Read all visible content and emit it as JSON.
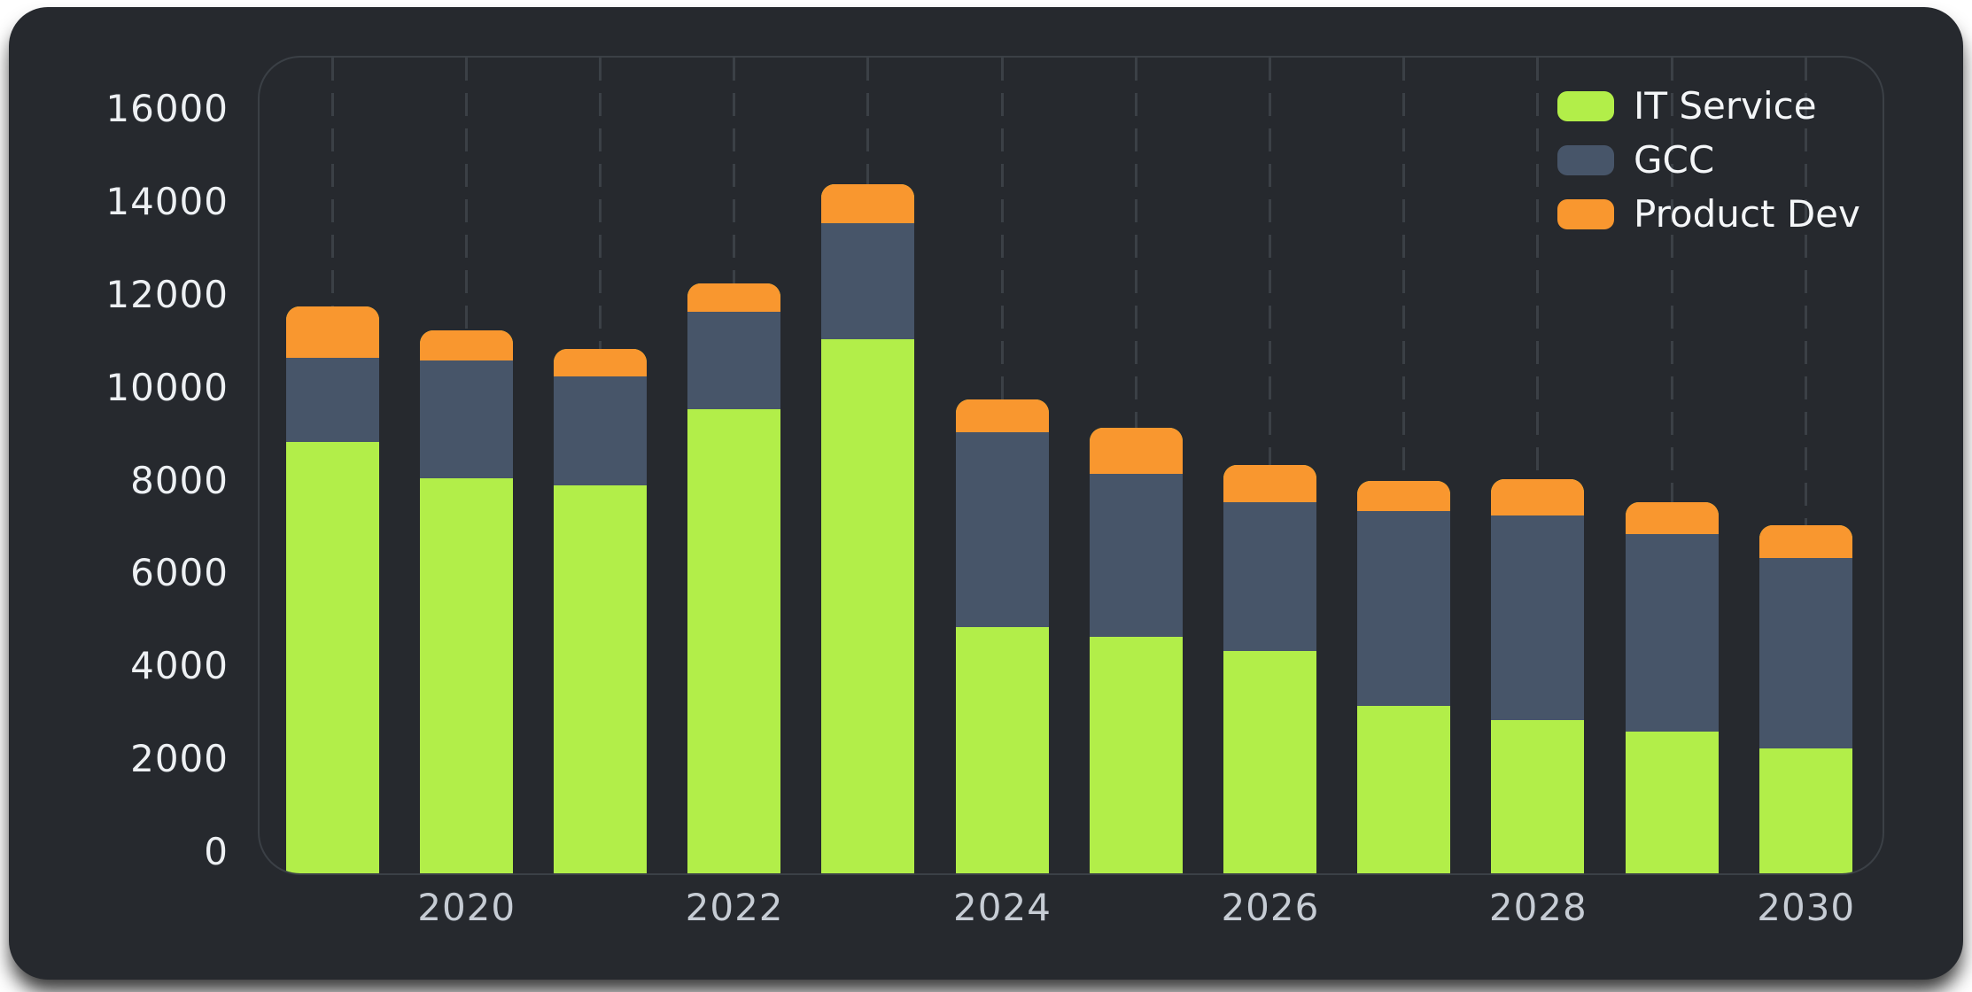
{
  "colors": {
    "page_bg": "#ffffff",
    "card_bg": "#26292e",
    "grid": "#3b4046",
    "plot_border": "#3b4046",
    "y_tick_text": "#edf0f3",
    "x_tick_text": "#c6ccd4",
    "legend_text": "#f4f6f8"
  },
  "chart_data": {
    "type": "bar",
    "stacked": true,
    "title": "",
    "categories": [
      "2019",
      "2020",
      "2021",
      "2022",
      "2023",
      "2024",
      "2025",
      "2026",
      "2027",
      "2028",
      "2029",
      "2030"
    ],
    "series": [
      {
        "name": "IT Service",
        "color": "#b2ee49",
        "values": [
          8800,
          8000,
          7850,
          9500,
          11000,
          4800,
          4600,
          4300,
          3100,
          2800,
          2550,
          2200
        ]
      },
      {
        "name": "GCC",
        "color": "#475569",
        "values": [
          1800,
          2550,
          2350,
          2100,
          2500,
          4200,
          3500,
          3200,
          4200,
          4400,
          4250,
          4100
        ]
      },
      {
        "name": "Product Dev",
        "color": "#f9972f",
        "values": [
          1100,
          650,
          600,
          600,
          850,
          700,
          1000,
          800,
          650,
          800,
          700,
          700
        ]
      }
    ],
    "totals": [
      11700,
      11200,
      10800,
      12200,
      14350,
      9700,
      9100,
      8300,
      7950,
      8000,
      7500,
      7000
    ],
    "ylim": [
      0,
      16000
    ],
    "yticks": [
      "0",
      "2000",
      "4000",
      "6000",
      "8000",
      "10000",
      "12000",
      "14000",
      "16000"
    ],
    "xticks": [
      "2020",
      "2022",
      "2024",
      "2026",
      "2028",
      "2030"
    ],
    "legend_position": "top-right",
    "legend_items": [
      "IT Service",
      "GCC",
      "Product Dev"
    ],
    "grid": "vertical-dashed"
  }
}
